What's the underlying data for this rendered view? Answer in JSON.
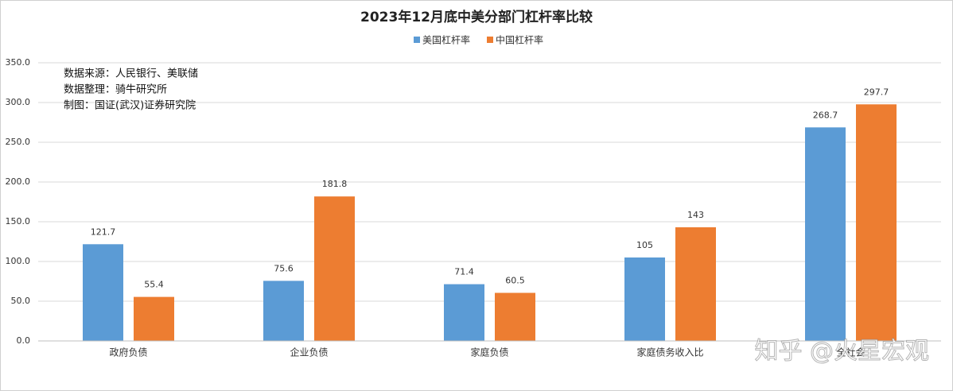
{
  "chart_data": {
    "type": "bar",
    "title": "2023年12月底中美分部门杠杆率比较",
    "categories": [
      "政府负债",
      "企业负债",
      "家庭负债",
      "家庭债务收入比",
      "全社会"
    ],
    "series": [
      {
        "name": "美国杠杆率",
        "color": "#5b9bd5",
        "values": [
          121.7,
          75.6,
          71.4,
          105,
          268.7
        ]
      },
      {
        "name": "中国杠杆率",
        "color": "#ed7d31",
        "values": [
          55.4,
          181.8,
          60.5,
          143,
          297.7
        ]
      }
    ],
    "ylim": [
      0,
      350
    ],
    "yticks": [
      {
        "value": 0,
        "label": "0.0"
      },
      {
        "value": 50,
        "label": "50.0"
      },
      {
        "value": 100,
        "label": "100.0"
      },
      {
        "value": 150,
        "label": "150.0"
      },
      {
        "value": 200,
        "label": "200.0"
      },
      {
        "value": 250,
        "label": "250.0"
      },
      {
        "value": 300,
        "label": "300.0"
      },
      {
        "value": 350,
        "label": "350.0"
      }
    ],
    "grid": true,
    "legend": "top",
    "annotations": [
      "数据来源：人民银行、美联储",
      "数据整理：骑牛研究所",
      "制图：国证(武汉)证券研究院"
    ],
    "watermark": "知乎 @火星宏观"
  }
}
